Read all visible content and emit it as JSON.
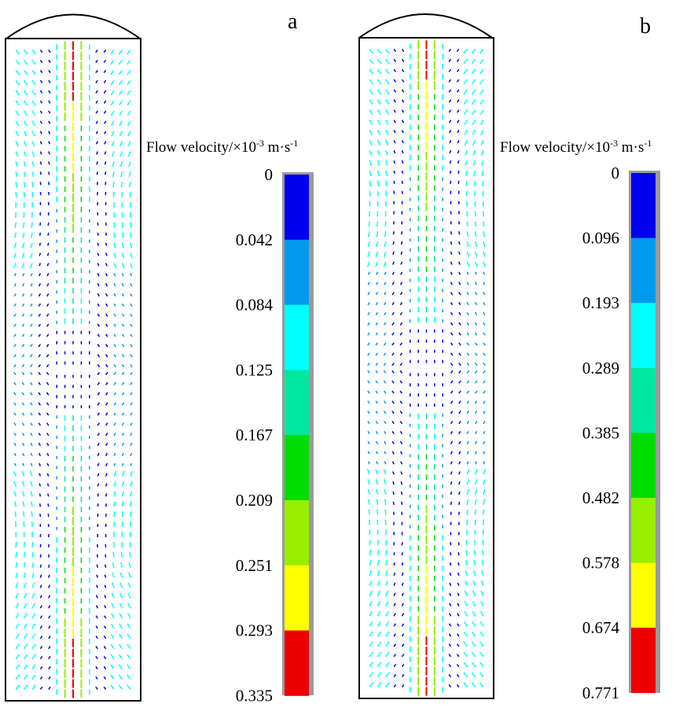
{
  "panels": [
    {
      "id": "a",
      "label": "a",
      "colorbar": {
        "title": "Flow velocity/×10",
        "title_sup": "-3",
        "title_unit": " m·s",
        "title_unit_sup": "-1",
        "ticks": [
          "0",
          "0.042",
          "0.084",
          "0.125",
          "0.167",
          "0.209",
          "0.251",
          "0.293",
          "0.335"
        ]
      }
    },
    {
      "id": "b",
      "label": "b",
      "colorbar": {
        "title": "Flow velocity/×10",
        "title_sup": "-3",
        "title_unit": " m·s",
        "title_unit_sup": "-1",
        "ticks": [
          "0",
          "0.096",
          "0.193",
          "0.289",
          "0.385",
          "0.482",
          "0.578",
          "0.674",
          "0.771"
        ]
      }
    }
  ],
  "colorbar_colors": [
    "#0000ee",
    "#0099ee",
    "#00ffff",
    "#00e8a0",
    "#00dd00",
    "#99ee00",
    "#ffff00",
    "#ee0000"
  ]
}
